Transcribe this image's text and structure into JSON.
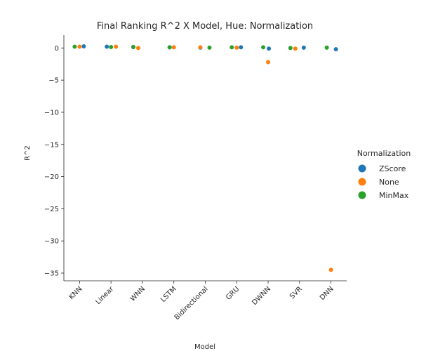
{
  "chart_data": {
    "type": "scatter",
    "title": "Final Ranking R^2 X Model, Hue: Normalization",
    "xlabel": "Model",
    "ylabel": "R^2",
    "categories": [
      "KNN",
      "Linear",
      "WNN",
      "LSTM",
      "Bidirectional",
      "GRU",
      "DWNN",
      "SVR",
      "DNN"
    ],
    "ylim": [
      -36.2,
      2.0
    ],
    "yticks": [
      "0",
      "−5",
      "−10",
      "−15",
      "−20",
      "−25",
      "−30",
      "−35"
    ],
    "ytick_values": [
      0,
      -5,
      -10,
      -15,
      -20,
      -25,
      -30,
      -35
    ],
    "grid": false,
    "legend": {
      "title": "Normalization",
      "position": "right"
    },
    "series": [
      {
        "name": "ZScore",
        "color": "#1f77b4",
        "values": [
          0.25,
          0.2,
          0.15,
          0.1,
          0.05,
          0.1,
          -0.1,
          0.05,
          -0.2
        ]
      },
      {
        "name": "None",
        "color": "#ff7f0e",
        "values": [
          0.2,
          0.2,
          0.0,
          0.1,
          0.1,
          0.05,
          -2.2,
          -0.1,
          -34.5
        ]
      },
      {
        "name": "MinMax",
        "color": "#2ca02c",
        "values": [
          0.2,
          0.15,
          0.15,
          0.1,
          0.05,
          0.1,
          0.1,
          0.0,
          0.05
        ]
      }
    ]
  }
}
